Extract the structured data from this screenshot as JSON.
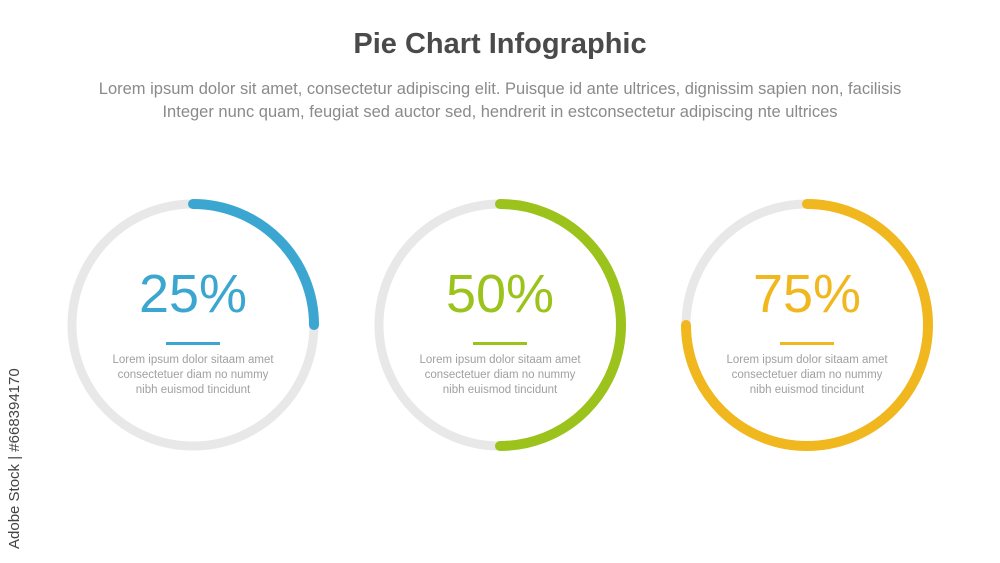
{
  "header": {
    "title": "Pie Chart Infographic",
    "subtitle_line1": "Lorem ipsum dolor sit amet, consectetur adipiscing elit. Puisque id ante ultrices, dignissim sapien non, facilisis",
    "subtitle_line2": "Integer nunc quam, feugiat sed auctor sed, hendrerit in estconsectetur adipiscing nte ultrices"
  },
  "chart_data": {
    "type": "pie",
    "style": "progress-ring",
    "track_color": "#e8e8e8",
    "items": [
      {
        "value": 25,
        "label": "25%",
        "color": "#3ba7d1",
        "description": [
          "Lorem ipsum dolor sitaam amet",
          "consectetuer diam no nummy",
          "nibh euismod tincidunt"
        ]
      },
      {
        "value": 50,
        "label": "50%",
        "color": "#9bc31c",
        "description": [
          "Lorem ipsum dolor sitaam amet",
          "consectetuer diam no nummy",
          "nibh euismod tincidunt"
        ]
      },
      {
        "value": 75,
        "label": "75%",
        "color": "#f0b81e",
        "description": [
          "Lorem ipsum dolor sitaam amet",
          "consectetuer diam no nummy",
          "nibh euismod tincidunt"
        ]
      }
    ]
  },
  "watermark": {
    "text": "Adobe Stock | #668394170"
  }
}
